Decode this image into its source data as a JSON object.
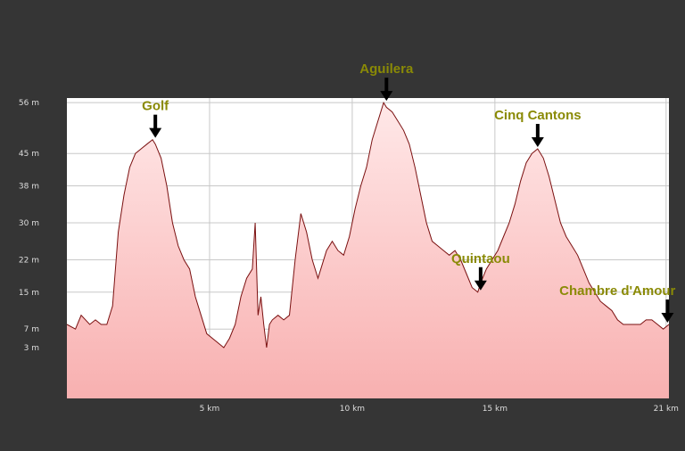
{
  "chart_data": {
    "type": "area",
    "title": "",
    "xlabel": "",
    "ylabel": "",
    "xlim": [
      0,
      21.1
    ],
    "ylim": [
      -8,
      57
    ],
    "y_ticks": [
      {
        "value": 3,
        "label": "3 m"
      },
      {
        "value": 7,
        "label": "7 m"
      },
      {
        "value": 15,
        "label": "15 m"
      },
      {
        "value": 22,
        "label": "22 m"
      },
      {
        "value": 30,
        "label": "30 m"
      },
      {
        "value": 38,
        "label": "38 m"
      },
      {
        "value": 45,
        "label": "45 m"
      },
      {
        "value": 56,
        "label": "56 m"
      }
    ],
    "x_ticks": [
      {
        "value": 5,
        "label": "5 km"
      },
      {
        "value": 10,
        "label": "10 km"
      },
      {
        "value": 15,
        "label": "15 km"
      },
      {
        "value": 21,
        "label": "21 km"
      }
    ],
    "grid": true,
    "colors": {
      "fill_top": "#ffe8e8",
      "fill_bottom": "#f8b0b0",
      "line": "#7a1010",
      "label": "#8a8a06",
      "arrow": "#000000",
      "grid": "#c8c8c8"
    },
    "series": [
      {
        "x": [
          0,
          0.3,
          0.5,
          0.8,
          1.0,
          1.2,
          1.4,
          1.6,
          1.8,
          2.0,
          2.2,
          2.4,
          2.6,
          2.8,
          3.0,
          3.1,
          3.3,
          3.5,
          3.7,
          3.9,
          4.1,
          4.3,
          4.5,
          4.7,
          4.9,
          5.1,
          5.3,
          5.5,
          5.7,
          5.9,
          6.1,
          6.3,
          6.5,
          6.6,
          6.7,
          6.8,
          6.9,
          7.0,
          7.1,
          7.2,
          7.4,
          7.6,
          7.8,
          8.0,
          8.2,
          8.4,
          8.6,
          8.8,
          8.9,
          9.1,
          9.3,
          9.5,
          9.7,
          9.9,
          10.1,
          10.3,
          10.5,
          10.7,
          10.9,
          11.1,
          11.2,
          11.4,
          11.6,
          11.8,
          12.0,
          12.2,
          12.4,
          12.6,
          12.8,
          13.0,
          13.2,
          13.4,
          13.6,
          13.8,
          14.0,
          14.2,
          14.4,
          14.5,
          14.7,
          14.9,
          15.1,
          15.3,
          15.5,
          15.7,
          15.9,
          16.1,
          16.3,
          16.5,
          16.7,
          16.9,
          17.1,
          17.3,
          17.5,
          17.7,
          17.9,
          18.1,
          18.3,
          18.5,
          18.7,
          18.9,
          19.1,
          19.3,
          19.5,
          19.7,
          19.9,
          20.1,
          20.3,
          20.5,
          20.7,
          20.9,
          21.1
        ],
        "y": [
          8,
          7,
          10,
          8,
          9,
          8,
          8,
          12,
          28,
          36,
          42,
          45,
          46,
          47,
          48,
          47,
          44,
          38,
          30,
          25,
          22,
          20,
          14,
          10,
          6,
          5,
          4,
          3,
          5,
          8,
          14,
          18,
          20,
          30,
          10,
          14,
          8,
          3,
          8,
          9,
          10,
          9,
          10,
          22,
          32,
          28,
          22,
          18,
          20,
          24,
          26,
          24,
          23,
          27,
          33,
          38,
          42,
          48,
          52,
          56,
          55,
          54,
          52,
          50,
          47,
          42,
          36,
          30,
          26,
          25,
          24,
          23,
          24,
          22,
          19,
          16,
          15,
          17,
          20,
          22,
          24,
          27,
          30,
          34,
          39,
          43,
          45,
          46,
          44,
          40,
          35,
          30,
          27,
          25,
          23,
          20,
          17,
          15,
          13,
          12,
          11,
          9,
          8,
          8,
          8,
          8,
          9,
          9,
          8,
          7,
          8
        ]
      }
    ],
    "annotations": [
      {
        "label": "Golf",
        "x": 3.1,
        "y": 48,
        "label_anchor": "middle"
      },
      {
        "label": "Aguilera",
        "x": 11.2,
        "y": 56,
        "label_anchor": "middle"
      },
      {
        "label": "Quintaou",
        "x": 14.5,
        "y": 15,
        "label_anchor": "middle"
      },
      {
        "label": "Cinq Cantons",
        "x": 16.5,
        "y": 46,
        "label_anchor": "middle"
      },
      {
        "label": "Chambre d'Amour",
        "x": 21.05,
        "y": 8,
        "label_anchor": "end"
      }
    ]
  }
}
